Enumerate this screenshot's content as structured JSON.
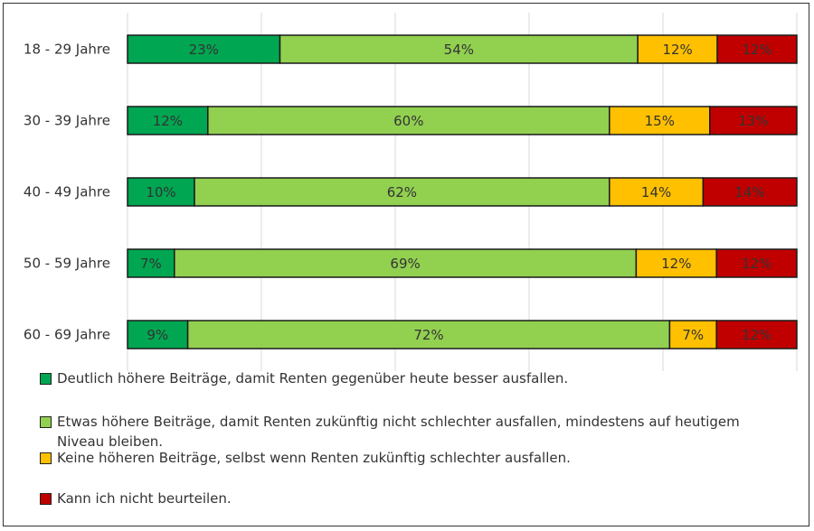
{
  "chart_data": {
    "type": "bar",
    "orientation": "horizontal-stacked-100",
    "categories": [
      "18 - 29 Jahre",
      "30 - 39 Jahre",
      "40 - 49 Jahre",
      "50 - 59 Jahre",
      "60 - 69 Jahre"
    ],
    "series": [
      {
        "name": "Deutlich höhere Beiträge, damit Renten gegenüber heute besser ausfallen.",
        "color": "#00a651",
        "values": [
          23,
          12,
          10,
          7,
          9
        ]
      },
      {
        "name": "Etwas höhere Beiträge, damit Renten zukünftig nicht schlechter ausfallen, mindestens auf heutigem Niveau bleiben.",
        "color": "#92d050",
        "values": [
          54,
          60,
          62,
          69,
          72
        ]
      },
      {
        "name": "Keine höheren Beiträge, selbst wenn Renten zukünftig schlechter ausfallen.",
        "color": "#ffc000",
        "values": [
          12,
          15,
          14,
          12,
          7
        ]
      },
      {
        "name": "Kann ich nicht beurteilen.",
        "color": "#c00000",
        "values": [
          12,
          13,
          14,
          12,
          12
        ]
      }
    ],
    "value_suffix": "%",
    "grid": true,
    "legend_position": "bottom"
  }
}
